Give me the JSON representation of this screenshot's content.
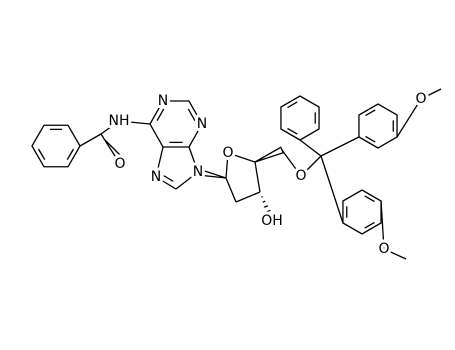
{
  "atoms": [
    "NH",
    "O",
    "N",
    "N",
    "N",
    "N",
    "O",
    "OH",
    "O",
    "O",
    "O"
  ]
}
